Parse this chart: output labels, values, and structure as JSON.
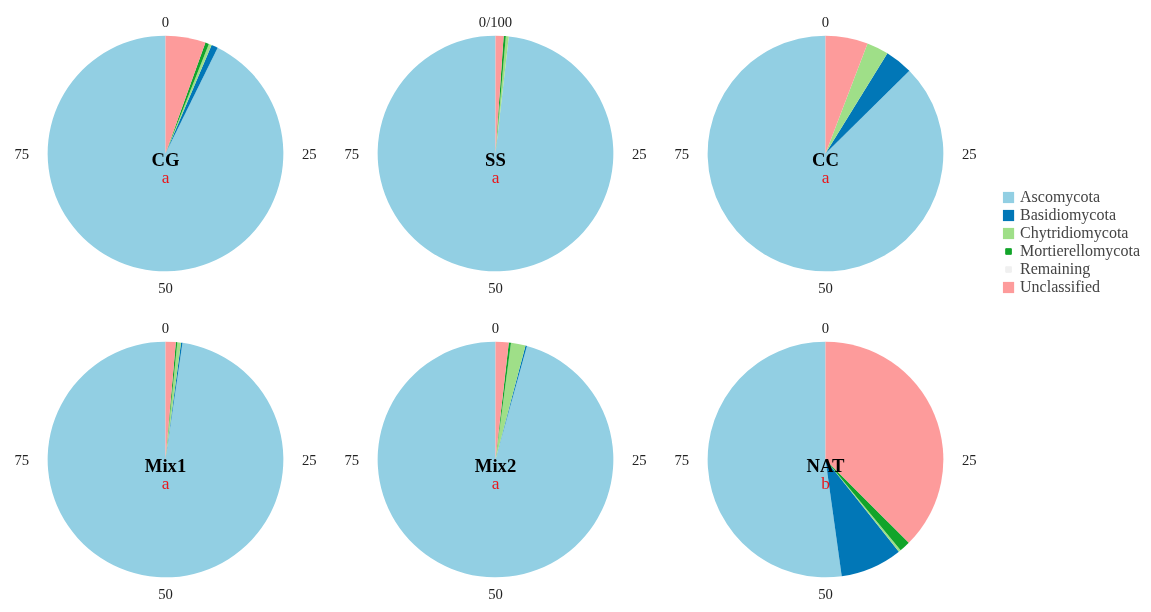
{
  "chart_data": [
    {
      "type": "pie",
      "title": "CG",
      "categories": [
        null,
        null,
        null,
        null,
        null,
        null
      ],
      "colors": [
        "#92cfe3",
        "#0177b7",
        "#9fdf88",
        "#12a42a",
        "#f0f0f0",
        "#fd9b9b"
      ],
      "values": [
        92.7,
        0.9,
        0.4,
        0.5,
        0,
        5.5
      ],
      "annotations": [
        "0",
        "25",
        "50",
        "75",
        "a"
      ]
    },
    {
      "type": "pie",
      "title": "SS",
      "categories": [
        null,
        null,
        null,
        null,
        null,
        null
      ],
      "colors": [
        "#92cfe3",
        "#0177b7",
        "#9fdf88",
        "#12a42a",
        "#f0f0f0",
        "#fd9b9b"
      ],
      "values": [
        98.2,
        0,
        0.4,
        0.3,
        0,
        1.1
      ],
      "annotations": [
        "0/100",
        "25",
        "50",
        "75",
        "a"
      ]
    },
    {
      "type": "pie",
      "title": "CC",
      "categories": [
        "Ascomycota",
        "Basidiomycota",
        "Chytridiomycota",
        "Mortierellomycota",
        "Remaining",
        "Unclassified"
      ],
      "colors": [
        "#92cfe3",
        "#0177b7",
        "#9fdf88",
        "#12a42a",
        "#f0f0f0",
        "#fd9b9b"
      ],
      "values": [
        87.4,
        3.8,
        3.0,
        0,
        0,
        5.8
      ],
      "annotations": [
        "0",
        "25",
        "50",
        "75",
        "a"
      ],
      "legend": "bottom right"
    },
    {
      "type": "pie",
      "title": "Mix1",
      "categories": [
        null,
        null,
        null,
        null,
        null,
        null
      ],
      "colors": [
        "#92cfe3",
        "#0177b7",
        "#9fdf88",
        "#12a42a",
        "#f0f0f0",
        "#fd9b9b"
      ],
      "values": [
        97.7,
        0.2,
        0.5,
        0.2,
        0,
        1.4
      ],
      "annotations": [
        "0",
        "25",
        "50",
        "75",
        "a"
      ]
    },
    {
      "type": "pie",
      "title": "Mix2",
      "categories": [
        null,
        null,
        null,
        null,
        null,
        null
      ],
      "colors": [
        "#92cfe3",
        "#0177b7",
        "#9fdf88",
        "#12a42a",
        "#f0f0f0",
        "#fd9b9b"
      ],
      "values": [
        95.7,
        0.2,
        2.0,
        0.3,
        0,
        1.8
      ],
      "annotations": [
        "0",
        "25",
        "50",
        "75",
        "a"
      ]
    },
    {
      "type": "pie",
      "title": "NAT",
      "categories": [
        null,
        null,
        null,
        null,
        null,
        null
      ],
      "colors": [
        "#92cfe3",
        "#0177b7",
        "#9fdf88",
        "#12a42a",
        "#f0f0f0",
        "#fd9b9b"
      ],
      "values": [
        52.2,
        8.5,
        0.3,
        1.5,
        0,
        37.5
      ],
      "annotations": [
        "0",
        "25",
        "50",
        "75",
        "b"
      ]
    }
  ]
}
